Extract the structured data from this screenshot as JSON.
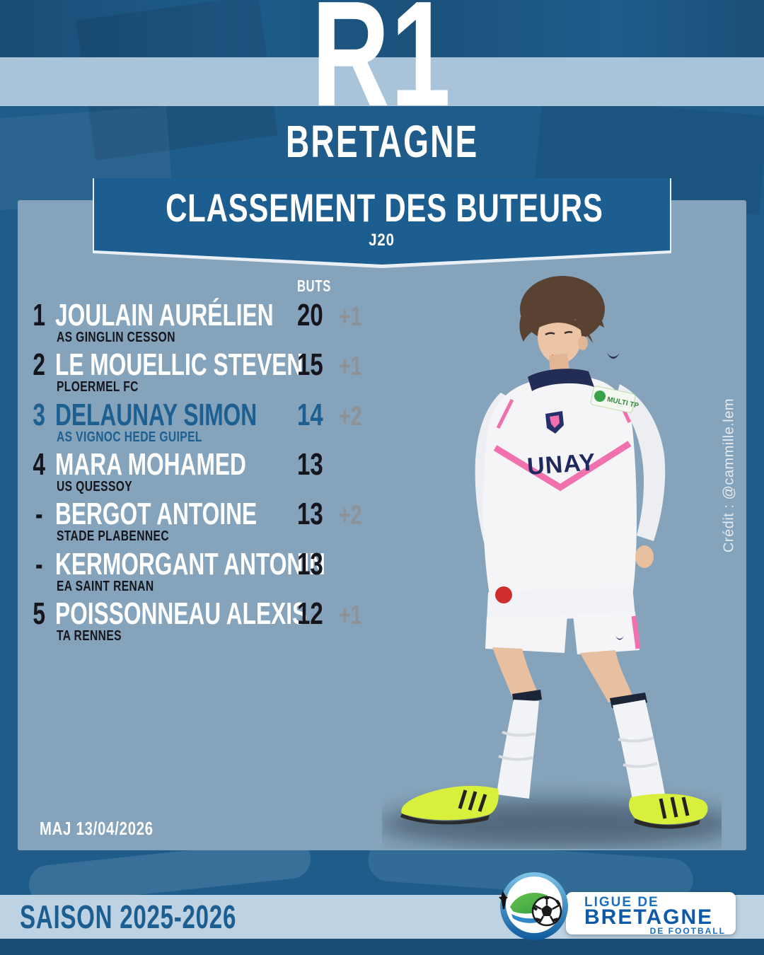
{
  "header": {
    "competition": "R1",
    "region": "BRETAGNE"
  },
  "banner": {
    "title": "CLASSEMENT DES BUTEURS",
    "matchday": "J20"
  },
  "table": {
    "goals_header": "BUTS",
    "rows": [
      {
        "rank": "1",
        "player": "JOULAIN AURÉLIEN",
        "club": "AS GINGLIN CESSON",
        "goals": "20",
        "bonus": "+1",
        "highlight": false
      },
      {
        "rank": "2",
        "player": "LE MOUELLIC STEVEN",
        "club": "PLOERMEL FC",
        "goals": "15",
        "bonus": "+1",
        "highlight": false
      },
      {
        "rank": "3",
        "player": "DELAUNAY SIMON",
        "club": "AS VIGNOC HEDE GUIPEL",
        "goals": "14",
        "bonus": "+2",
        "highlight": true
      },
      {
        "rank": "4",
        "player": "MARA MOHAMED",
        "club": "US QUESSOY",
        "goals": "13",
        "bonus": "",
        "highlight": false
      },
      {
        "rank": "-",
        "player": "BERGOT ANTOINE",
        "club": "STADE PLABENNEC",
        "goals": "13",
        "bonus": "+2",
        "highlight": false
      },
      {
        "rank": "-",
        "player": "KERMORGANT ANTONIN",
        "club": "EA SAINT RENAN",
        "goals": "13",
        "bonus": "",
        "highlight": false
      },
      {
        "rank": "5",
        "player": "POISSONNEAU ALEXIS",
        "club": "TA RENNES",
        "goals": "12",
        "bonus": "+1",
        "highlight": false
      }
    ]
  },
  "player_photo": {
    "credit": "Crédit : @cammille.lem",
    "jersey_sponsor": "UNAY",
    "shoulder_patch": "MULTI TP"
  },
  "footer": {
    "updated": "MAJ 13/04/2026",
    "season": "SAISON 2025-2026"
  },
  "logo": {
    "line1": "LIGUE DE",
    "line2": "BRETAGNE",
    "line3": "DE FOOTBALL"
  },
  "colors": {
    "background": "#1f5c8a",
    "stripe": "#a9c4d8",
    "panel": "#85a3ba",
    "banner": "#1d5e90",
    "ink": "#15161d",
    "highlight": "#1c5f90",
    "bonus_gray": "#8d9296",
    "band": "#bdd2e2",
    "band_text": "#1d5e90",
    "logo_blue": "#1a6fbe",
    "pink": "#f171ae",
    "volt": "#d8ef3c"
  }
}
